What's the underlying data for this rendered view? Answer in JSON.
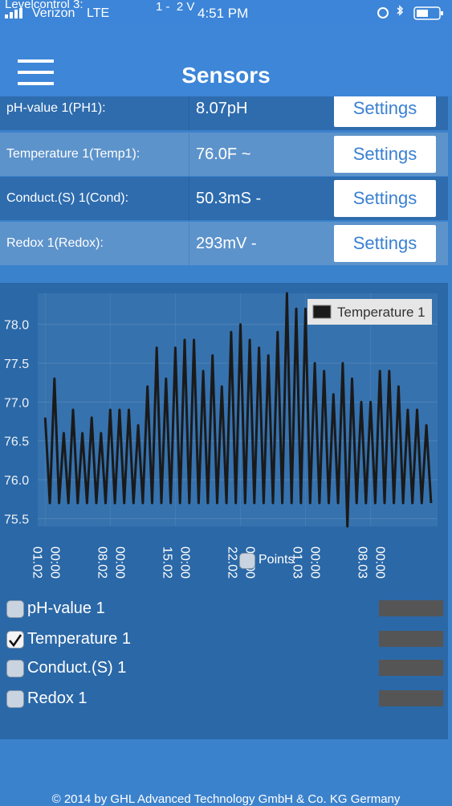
{
  "status_bar": {
    "overlay": "Levelcontrol 3:",
    "carrier": "Verizon",
    "network": "LTE",
    "overlay_2": "1 -  2 V",
    "time": "4:51 PM"
  },
  "header": {
    "title": "Sensors"
  },
  "sensors": [
    {
      "name": "pH-value 1(PH1):",
      "value": "8.07pH",
      "button": "Settings"
    },
    {
      "name": "Temperature 1(Temp1):",
      "value": "76.0F ~",
      "button": "Settings"
    },
    {
      "name": "Conduct.(S) 1(Cond):",
      "value": "50.3mS -",
      "button": "Settings"
    },
    {
      "name": "Redox 1(Redox):",
      "value": "293mV -",
      "button": "Settings"
    }
  ],
  "chart": {
    "type": "line",
    "x": [
      0,
      0.5,
      1,
      1.5,
      2,
      2.5,
      3,
      3.5,
      4,
      4.5,
      5,
      5.5,
      6,
      6.5,
      7,
      7.5,
      8,
      8.5,
      9,
      9.5,
      10,
      10.5,
      11,
      11.5,
      12,
      12.5,
      13,
      13.5,
      14,
      14.5,
      15,
      15.5,
      16,
      16.5,
      17,
      17.5,
      18,
      18.5,
      19,
      19.5,
      20,
      20.5,
      21,
      21.5,
      22,
      22.5,
      23,
      23.5,
      24,
      24.5,
      25,
      25.5,
      26,
      26.5,
      27,
      27.5,
      28,
      28.5,
      29,
      29.5,
      30,
      30.5,
      31,
      31.5,
      32,
      32.5,
      33,
      33.5,
      34,
      34.5,
      35,
      35.5,
      36,
      36.5,
      37,
      37.5,
      38,
      38.5,
      39,
      39.5,
      40,
      40.5,
      41,
      41.5
    ],
    "series": [
      {
        "name": "Temperature 1",
        "color": "#1a1a1a",
        "values": [
          76.8,
          75.7,
          77.3,
          75.7,
          76.6,
          75.7,
          76.9,
          75.7,
          76.6,
          75.7,
          76.8,
          75.7,
          76.6,
          75.7,
          76.9,
          75.7,
          76.9,
          75.7,
          76.9,
          75.7,
          76.7,
          75.7,
          77.2,
          75.7,
          77.7,
          75.7,
          77.3,
          75.7,
          77.7,
          75.7,
          77.8,
          75.7,
          77.8,
          75.7,
          77.4,
          75.7,
          77.6,
          75.7,
          77.2,
          75.7,
          77.9,
          75.7,
          78.0,
          75.7,
          77.8,
          75.7,
          77.7,
          75.7,
          77.6,
          75.7,
          77.9,
          75.7,
          78.4,
          75.7,
          78.2,
          75.7,
          78.2,
          75.7,
          77.5,
          75.7,
          77.4,
          75.7,
          77.1,
          75.7,
          77.5,
          75.4,
          77.3,
          75.7,
          77.0,
          75.7,
          77.0,
          75.7,
          77.4,
          75.7,
          77.4,
          75.7,
          77.2,
          75.7,
          76.9,
          75.7,
          76.9,
          75.7,
          76.7,
          75.7
        ]
      }
    ],
    "xlim": [
      -0.8,
      42.2
    ],
    "xticks": [
      {
        "value": 0,
        "label": "01.02 00:00"
      },
      {
        "value": 7,
        "label": "08.02 00:00"
      },
      {
        "value": 14,
        "label": "15.02 00:00"
      },
      {
        "value": 21,
        "label": "22.02 00:00"
      },
      {
        "value": 28,
        "label": "01.03 00:00"
      },
      {
        "value": 35,
        "label": "08.03 00:00"
      }
    ],
    "ylim": [
      75.4,
      78.4
    ],
    "yticks": [
      {
        "value": 75.5,
        "label": "75.5"
      },
      {
        "value": 76,
        "label": "76.0"
      },
      {
        "value": 76.5,
        "label": "76.5"
      },
      {
        "value": 77,
        "label": "77.0"
      },
      {
        "value": 77.5,
        "label": "77.5"
      },
      {
        "value": 78,
        "label": "78.0"
      }
    ],
    "grid": true,
    "points_toggle": "Points"
  },
  "channels": [
    {
      "label": "pH-value 1",
      "checked": false
    },
    {
      "label": "Temperature 1",
      "checked": true
    },
    {
      "label": "Conduct.(S) 1",
      "checked": false
    },
    {
      "label": "Redox 1",
      "checked": false
    }
  ],
  "footer": "© 2014 by GHL Advanced Technology GmbH & Co. KG Germany"
}
